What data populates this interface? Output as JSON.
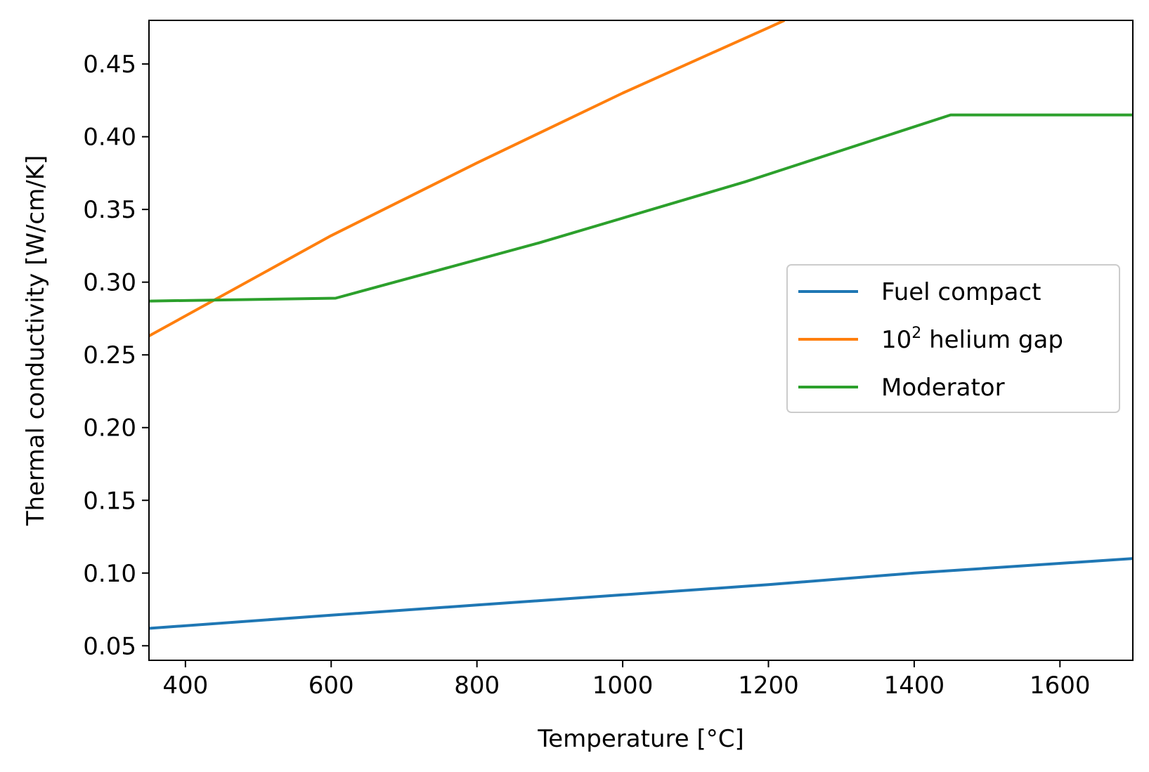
{
  "chart_data": {
    "type": "line",
    "xlabel": "Temperature [°C]",
    "ylabel": "Thermal conductivity [W/cm/K]",
    "xlim": [
      350,
      1700
    ],
    "ylim": [
      0.04,
      0.48
    ],
    "xticks": [
      400,
      600,
      800,
      1000,
      1200,
      1400,
      1600
    ],
    "xtick_labels": [
      "400",
      "600",
      "800",
      "1000",
      "1200",
      "1400",
      "1600"
    ],
    "yticks": [
      0.05,
      0.1,
      0.15,
      0.2,
      0.25,
      0.3,
      0.35,
      0.4,
      0.45
    ],
    "ytick_labels": [
      "0.05",
      "0.10",
      "0.15",
      "0.20",
      "0.25",
      "0.30",
      "0.35",
      "0.40",
      "0.45"
    ],
    "grid": false,
    "legend_position": "center-right",
    "series": [
      {
        "name": "Fuel compact",
        "color": "#1f77b4",
        "x": [
          350,
          600,
          800,
          1000,
          1200,
          1400,
          1700
        ],
        "y": [
          0.062,
          0.071,
          0.078,
          0.085,
          0.092,
          0.1,
          0.11
        ]
      },
      {
        "name": "10² helium gap",
        "name_parts": {
          "base": "10",
          "sup": "2",
          "rest": " helium gap"
        },
        "color": "#ff7f0e",
        "x": [
          350,
          600,
          800,
          1000,
          1200,
          1222
        ],
        "y": [
          0.263,
          0.332,
          0.382,
          0.43,
          0.475,
          0.48
        ]
      },
      {
        "name": "Moderator",
        "color": "#2ca02c",
        "x": [
          350,
          606,
          885,
          1168,
          1450,
          1700
        ],
        "y": [
          0.287,
          0.289,
          0.327,
          0.369,
          0.415,
          0.415
        ]
      }
    ]
  }
}
